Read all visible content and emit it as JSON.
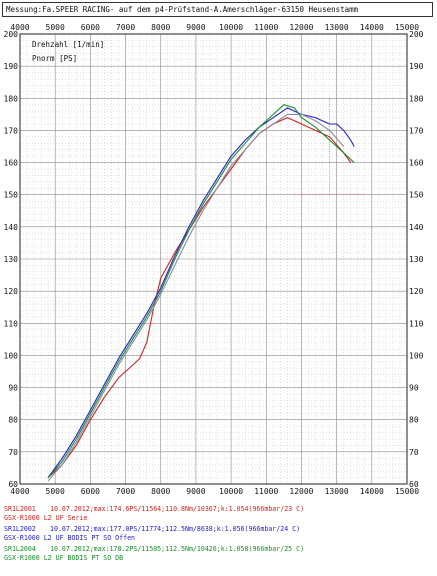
{
  "header": {
    "text": "Messung:Fa.SPEER RACING- auf dem p4-Prüfstand-A.Amerschläger-63150 Heusenstamm"
  },
  "chart_data": {
    "type": "line",
    "title": "",
    "xlabel": "",
    "ylabel": "",
    "xlim": [
      4000,
      15000
    ],
    "ylim": [
      60,
      200
    ],
    "x_ticks": [
      "4000",
      "5000",
      "6000",
      "7000",
      "8000",
      "9000",
      "10000",
      "11000",
      "12000",
      "13000",
      "14000",
      "15000"
    ],
    "y_ticks": [
      "60",
      "70",
      "80",
      "90",
      "100",
      "110",
      "120",
      "130",
      "140",
      "150",
      "160",
      "170",
      "180",
      "190",
      "200"
    ],
    "grid": true,
    "annotations": [
      "Drehzahl [1/min]",
      "Pnorm [PS]"
    ],
    "series": [
      {
        "color": "#d42020",
        "x": [
          4800,
          5200,
          5600,
          6000,
          6400,
          6800,
          7200,
          7400,
          7600,
          7800,
          8000,
          8400,
          8800,
          9200,
          9600,
          10000,
          10400,
          10800,
          11200,
          11600,
          11800,
          12000,
          12400,
          12800,
          13200,
          13400
        ],
        "y": [
          62,
          66,
          72,
          80,
          87,
          93,
          97,
          99,
          104,
          115,
          124,
          132,
          139,
          146,
          152,
          158,
          164,
          169,
          172,
          174,
          173,
          172,
          170,
          168,
          163,
          160
        ]
      },
      {
        "color": "#2222cc",
        "x": [
          4800,
          5200,
          5600,
          6000,
          6400,
          6800,
          7200,
          7600,
          8000,
          8400,
          8800,
          9200,
          9600,
          10000,
          10400,
          10800,
          11200,
          11600,
          11800,
          12000,
          12400,
          12800,
          13000,
          13200,
          13400,
          13500
        ],
        "y": [
          62,
          68,
          75,
          83,
          91,
          99,
          106,
          113,
          121,
          131,
          140,
          148,
          155,
          162,
          167,
          171,
          174,
          177,
          176,
          175,
          174,
          172,
          172,
          170,
          167,
          165
        ]
      },
      {
        "color": "#1a8f2a",
        "x": [
          4800,
          5200,
          5600,
          6000,
          6400,
          6800,
          7200,
          7600,
          8000,
          8400,
          8800,
          9200,
          9600,
          10000,
          10400,
          10800,
          11200,
          11500,
          11800,
          12000,
          12400,
          12800,
          13200,
          13500
        ],
        "y": [
          62,
          67,
          74,
          82,
          90,
          98,
          105,
          112,
          120,
          130,
          139,
          147,
          154,
          161,
          166,
          171,
          175,
          178,
          177,
          174,
          171,
          167,
          163,
          160
        ]
      },
      {
        "color": "#8a8aa8",
        "x": [
          4800,
          5200,
          5600,
          6000,
          6400,
          6800,
          7200,
          7600,
          8000,
          8400,
          8800,
          9200,
          9600,
          10000,
          10400,
          10800,
          11200,
          11600,
          12000,
          12400,
          12800,
          13200
        ],
        "y": [
          61,
          66,
          73,
          81,
          89,
          97,
          104,
          111,
          119,
          128,
          137,
          145,
          152,
          159,
          164,
          169,
          172,
          175,
          175,
          173,
          170,
          165
        ]
      }
    ]
  },
  "legend": [
    {
      "code": "SR1L2001",
      "line1": "10.07.2012;max:174.6PS/11564;110.8Nm/10367;k:1.054(966mbar/23 C)",
      "line2": "GSX-R1000 L2 UF Serie",
      "color": "#d42020",
      "subcolor": "#d42020"
    },
    {
      "code": "SR1L2002",
      "line1": "10.07.2012;max:177.0PS/11774;112.5Nm/8638;k:1.056(966mbar/24 C)",
      "line2": "GSX-R1000 L2 UF BODIS PT SO Offen",
      "color": "#2222cc",
      "subcolor": "#2222cc"
    },
    {
      "code": "SR1L2004",
      "line1": "10.07.2012;max:178.2PS/11505;112.5Nm/10426;k:1.058(966mbar/25 C)",
      "line2": "GSX-R1000 L2 UF BODIS PT SO DB",
      "color": "#1a8f2a",
      "subcolor": "#1a8f2a"
    }
  ]
}
